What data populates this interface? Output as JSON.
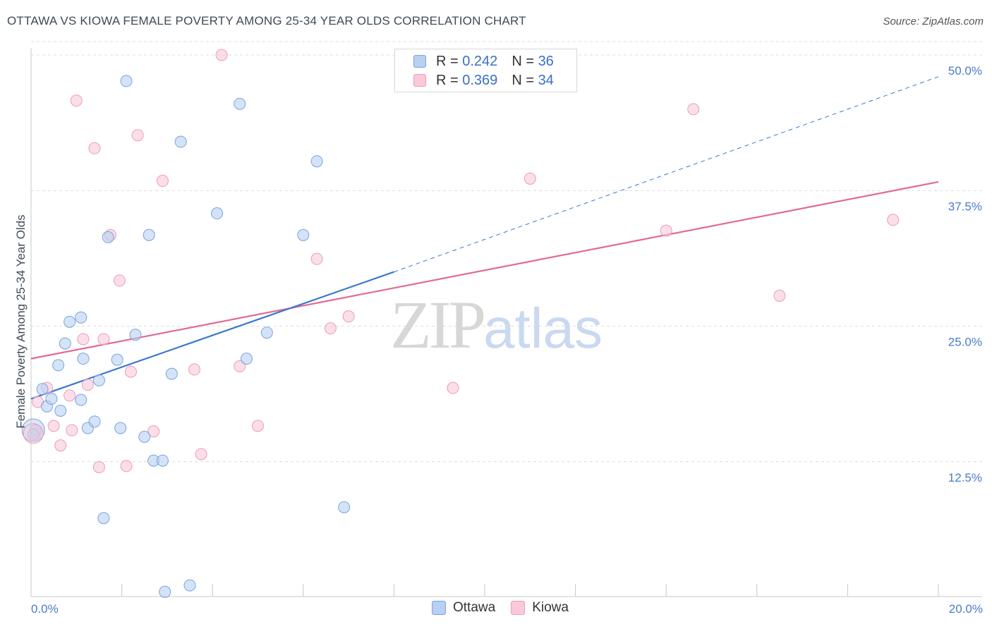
{
  "header": {
    "title": "OTTAWA VS KIOWA FEMALE POVERTY AMONG 25-34 YEAR OLDS CORRELATION CHART",
    "source": "Source: ZipAtlas.com"
  },
  "watermark": {
    "zip": "ZIP",
    "atlas": "atlas"
  },
  "legend": {
    "ottawa": {
      "r_label": "R =",
      "r_value": "0.242",
      "n_label": "N =",
      "n_value": "36"
    },
    "kiowa": {
      "r_label": "R =",
      "r_value": "0.369",
      "n_label": "N =",
      "n_value": "34"
    }
  },
  "bottom_legend": {
    "ottawa": "Ottawa",
    "kiowa": "Kiowa"
  },
  "colors": {
    "ottawa_fill": "#b8d0f2",
    "ottawa_stroke": "#7aa3de",
    "ottawa_line": "#3a78d0",
    "kiowa_fill": "#f9c9d8",
    "kiowa_stroke": "#ee9ab5",
    "kiowa_line": "#e26a93",
    "grid": "#dcdcdc",
    "axis_text": "#4a7cc9"
  },
  "chart_data": {
    "type": "scatter",
    "title": "OTTAWA VS KIOWA FEMALE POVERTY AMONG 25-34 YEAR OLDS CORRELATION CHART",
    "xlabel": "",
    "ylabel": "Female Poverty Among 25-34 Year Olds",
    "xlim": [
      0,
      20
    ],
    "ylim": [
      0,
      50
    ],
    "x_ticks": [
      "0.0%",
      "20.0%"
    ],
    "y_ticks": [
      "12.5%",
      "25.0%",
      "37.5%",
      "50.0%"
    ],
    "y_tick_values": [
      12.5,
      25.0,
      37.5,
      50.0
    ],
    "grid": true,
    "legend_position": "top-center",
    "series": [
      {
        "name": "Ottawa",
        "r": 0.242,
        "n": 36,
        "trend": {
          "x0": 0,
          "y0": 18.3,
          "x1": 8.0,
          "y1": 30.0,
          "dashed_to_x": 20,
          "dashed_to_y": 48.0
        },
        "points": [
          [
            0.1,
            15.4
          ],
          [
            0.25,
            19.2
          ],
          [
            0.35,
            17.6
          ],
          [
            0.45,
            18.3
          ],
          [
            0.6,
            21.4
          ],
          [
            0.65,
            17.2
          ],
          [
            0.75,
            23.4
          ],
          [
            0.85,
            25.4
          ],
          [
            1.1,
            18.2
          ],
          [
            1.1,
            25.8
          ],
          [
            1.15,
            22.0
          ],
          [
            1.25,
            15.6
          ],
          [
            1.4,
            16.2
          ],
          [
            1.5,
            20.0
          ],
          [
            1.6,
            7.3
          ],
          [
            1.7,
            33.2
          ],
          [
            1.9,
            21.9
          ],
          [
            1.97,
            15.6
          ],
          [
            2.1,
            47.6
          ],
          [
            2.3,
            24.2
          ],
          [
            2.5,
            14.8
          ],
          [
            2.6,
            33.4
          ],
          [
            2.7,
            12.6
          ],
          [
            2.9,
            12.6
          ],
          [
            2.95,
            0.5
          ],
          [
            3.1,
            20.6
          ],
          [
            3.3,
            42.0
          ],
          [
            3.5,
            1.1
          ],
          [
            4.1,
            35.4
          ],
          [
            4.6,
            45.5
          ],
          [
            4.75,
            22.0
          ],
          [
            5.2,
            24.4
          ],
          [
            6.0,
            33.4
          ],
          [
            6.3,
            40.2
          ],
          [
            6.9,
            8.3
          ],
          [
            0.05,
            15.0
          ]
        ]
      },
      {
        "name": "Kiowa",
        "r": 0.369,
        "n": 34,
        "trend": {
          "x0": 0,
          "y0": 22.0,
          "x1": 20,
          "y1": 38.3
        },
        "points": [
          [
            0.1,
            15.1
          ],
          [
            0.15,
            18.0
          ],
          [
            0.35,
            19.3
          ],
          [
            0.5,
            15.8
          ],
          [
            0.65,
            14.0
          ],
          [
            0.85,
            18.6
          ],
          [
            0.9,
            15.4
          ],
          [
            1.0,
            45.8
          ],
          [
            1.15,
            23.8
          ],
          [
            1.25,
            19.6
          ],
          [
            1.4,
            41.4
          ],
          [
            1.5,
            12.0
          ],
          [
            1.6,
            23.8
          ],
          [
            1.75,
            33.4
          ],
          [
            1.95,
            29.2
          ],
          [
            2.1,
            12.1
          ],
          [
            2.2,
            20.8
          ],
          [
            2.35,
            42.6
          ],
          [
            2.7,
            15.3
          ],
          [
            2.9,
            38.4
          ],
          [
            3.6,
            21.0
          ],
          [
            3.75,
            13.2
          ],
          [
            4.2,
            50.0
          ],
          [
            4.6,
            21.3
          ],
          [
            5.0,
            15.8
          ],
          [
            6.3,
            31.2
          ],
          [
            6.6,
            24.8
          ],
          [
            7.0,
            25.9
          ],
          [
            9.3,
            19.3
          ],
          [
            11.0,
            38.6
          ],
          [
            14.0,
            33.8
          ],
          [
            14.6,
            45.0
          ],
          [
            16.5,
            27.8
          ],
          [
            19.0,
            34.8
          ]
        ]
      }
    ]
  }
}
